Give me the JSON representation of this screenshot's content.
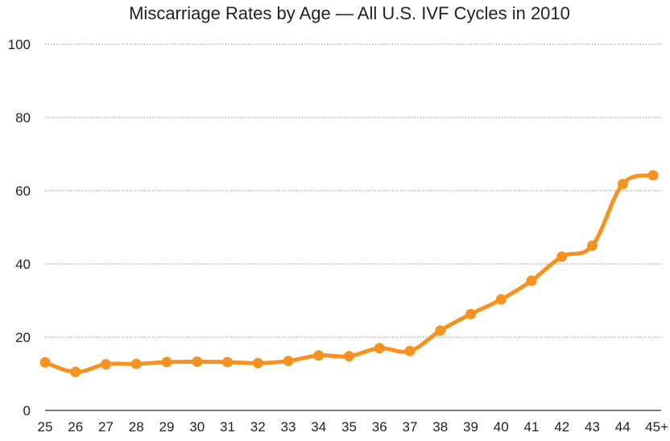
{
  "chart_data": {
    "type": "line",
    "title": "Miscarriage Rates by Age — All U.S. IVF Cycles in 2010",
    "xlabel": "",
    "ylabel": "",
    "categories": [
      "25",
      "26",
      "27",
      "28",
      "29",
      "30",
      "31",
      "32",
      "33",
      "34",
      "35",
      "36",
      "37",
      "38",
      "39",
      "40",
      "41",
      "42",
      "43",
      "44",
      "45+"
    ],
    "series": [
      {
        "values": [
          13.1,
          10.5,
          12.6,
          12.7,
          13.2,
          13.3,
          13.2,
          12.9,
          13.5,
          15.0,
          14.8,
          17.0,
          16.2,
          21.8,
          26.3,
          30.3,
          35.4,
          42.0,
          45.0,
          61.8,
          64.2
        ]
      }
    ],
    "ylim": [
      0,
      100
    ],
    "yticks": [
      0,
      20,
      40,
      60,
      80,
      100
    ],
    "grid": true,
    "line_color": "#f7911f",
    "grid_color": "#8a8a8a",
    "axis_color": "#333333"
  }
}
